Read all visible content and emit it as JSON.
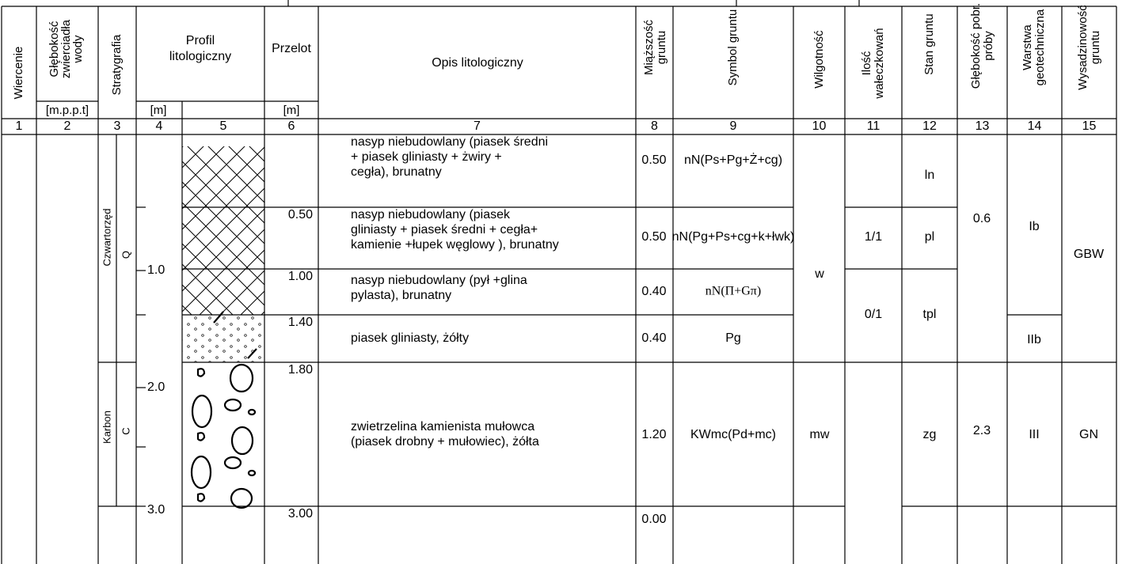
{
  "header": [
    {
      "title": [
        "Wiercenie"
      ]
    },
    {
      "title": [
        "Głębokość",
        "zwierciadła",
        "wody"
      ],
      "unit": "[m.p.p.t]"
    },
    {
      "title": [
        "Stratygrafia"
      ]
    },
    {
      "title": [
        "Profil",
        "litologiczny"
      ],
      "unit": "[m]"
    },
    {
      "title": [
        "Przelot"
      ],
      "unit": "[m]"
    },
    {
      "title": [
        "Opis litologiczny"
      ]
    },
    {
      "title": [
        "Miąższość",
        "gruntu"
      ]
    },
    {
      "title": [
        "Symbol gruntu"
      ]
    },
    {
      "title": [
        "Wilgotność"
      ]
    },
    {
      "title": [
        "Ilość",
        "wałeczkowań"
      ]
    },
    {
      "title": [
        "Stan gruntu"
      ]
    },
    {
      "title": [
        "Głębokość pobr.",
        "próby"
      ]
    },
    {
      "title": [
        "Warstwa",
        "geotechniczna"
      ]
    },
    {
      "title": [
        "Wysadzinowość",
        "gruntu"
      ]
    }
  ],
  "column_numbers": [
    "1",
    "2",
    "3",
    "4",
    "5",
    "6",
    "7",
    "8",
    "9",
    "10",
    "11",
    "12",
    "13",
    "14",
    "15"
  ],
  "stratigraphy": [
    {
      "name": "Czwartorzęd",
      "symbol": "Q"
    },
    {
      "name": "Karbon",
      "symbol": "C"
    }
  ],
  "depth_scale": [
    "1.0",
    "2.0",
    "3.0"
  ],
  "layers": [
    {
      "description": [
        "nasyp niebudowlany (piasek średni",
        "+ piasek gliniasty + żwiry +",
        "cegła), brunatny"
      ],
      "thickness": "0.50",
      "symbol": "nN(Ps+Pg+Ż+cg)"
    },
    {
      "top": "0.50",
      "description": [
        "nasyp niebudowlany (piasek",
        "gliniasty + piasek średni + cegła+",
        "kamienie +łupek węglowy ), brunatny"
      ],
      "thickness": "0.50",
      "symbol": "nN(Pg+Ps+cg+k+łwk)"
    },
    {
      "top": "1.00",
      "description": [
        "nasyp niebudowlany (pył +glina",
        "pylasta), brunatny"
      ],
      "thickness": "0.40",
      "symbol": "nN(Π+Gπ)"
    },
    {
      "top": "1.40",
      "description": [
        "piasek gliniasty, żółty"
      ],
      "thickness": "0.40",
      "symbol": "Pg"
    },
    {
      "top": "1.80",
      "description": [
        "zwietrzelina kamienista mułowca",
        "(piasek drobny + mułowiec), żółta"
      ],
      "thickness": "1.20",
      "symbol": "KWmc(Pd+mc)"
    },
    {
      "top": "3.00",
      "thickness": "0.00"
    }
  ],
  "moisture": [
    "w",
    "mw"
  ],
  "roll_count": [
    "1/1",
    "0/1"
  ],
  "soil_state": [
    "ln",
    "pl",
    "tpl",
    "zg"
  ],
  "sample_depth": [
    "0.6",
    "2.3"
  ],
  "geotech_layer": [
    "Ib",
    "IIb",
    "III"
  ],
  "frost_class": [
    "GBW",
    "GN"
  ]
}
